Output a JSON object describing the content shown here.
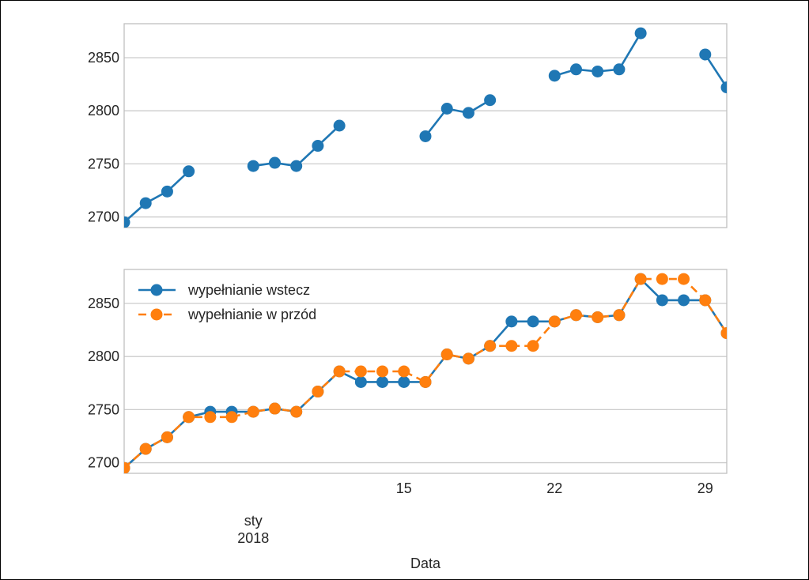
{
  "chart_data": [
    {
      "type": "line",
      "x": [
        "2018-01-02",
        "2018-01-03",
        "2018-01-04",
        "2018-01-05",
        "2018-01-06",
        "2018-01-07",
        "2018-01-08",
        "2018-01-09",
        "2018-01-10",
        "2018-01-11",
        "2018-01-12",
        "2018-01-13",
        "2018-01-14",
        "2018-01-15",
        "2018-01-16",
        "2018-01-17",
        "2018-01-18",
        "2018-01-19",
        "2018-01-20",
        "2018-01-21",
        "2018-01-22",
        "2018-01-23",
        "2018-01-24",
        "2018-01-25",
        "2018-01-26",
        "2018-01-27",
        "2018-01-28",
        "2018-01-29",
        "2018-01-30"
      ],
      "series": [
        {
          "color": "#1f77b4",
          "values": [
            2695,
            2713,
            2724,
            2743,
            null,
            null,
            2748,
            2751,
            2748,
            2767,
            2786,
            null,
            null,
            null,
            2776,
            2802,
            2798,
            2810,
            null,
            null,
            2833,
            2839,
            2837,
            2839,
            2873,
            null,
            null,
            2853,
            2822
          ]
        }
      ],
      "yticks": [
        2700,
        2750,
        2800,
        2850
      ],
      "ylim": [
        2690,
        2882
      ],
      "grid": true
    },
    {
      "type": "line",
      "x": [
        "2018-01-02",
        "2018-01-03",
        "2018-01-04",
        "2018-01-05",
        "2018-01-06",
        "2018-01-07",
        "2018-01-08",
        "2018-01-09",
        "2018-01-10",
        "2018-01-11",
        "2018-01-12",
        "2018-01-13",
        "2018-01-14",
        "2018-01-15",
        "2018-01-16",
        "2018-01-17",
        "2018-01-18",
        "2018-01-19",
        "2018-01-20",
        "2018-01-21",
        "2018-01-22",
        "2018-01-23",
        "2018-01-24",
        "2018-01-25",
        "2018-01-26",
        "2018-01-27",
        "2018-01-28",
        "2018-01-29",
        "2018-01-30"
      ],
      "series": [
        {
          "name": "wypełnianie wstecz",
          "color": "#1f77b4",
          "style": "solid",
          "values": [
            2695,
            2713,
            2724,
            2743,
            2748,
            2748,
            2748,
            2751,
            2748,
            2767,
            2786,
            2776,
            2776,
            2776,
            2776,
            2802,
            2798,
            2810,
            2833,
            2833,
            2833,
            2839,
            2837,
            2839,
            2873,
            2853,
            2853,
            2853,
            2822
          ]
        },
        {
          "name": "wypełnianie w przód",
          "color": "#ff7f0e",
          "style": "dashed",
          "values": [
            2695,
            2713,
            2724,
            2743,
            2743,
            2743,
            2748,
            2751,
            2748,
            2767,
            2786,
            2786,
            2786,
            2786,
            2776,
            2802,
            2798,
            2810,
            2810,
            2810,
            2833,
            2839,
            2837,
            2839,
            2873,
            2873,
            2873,
            2853,
            2822
          ]
        }
      ],
      "yticks": [
        2700,
        2750,
        2800,
        2850
      ],
      "ylim": [
        2690,
        2882
      ],
      "legend": "top-left",
      "grid": true,
      "xticks": [
        {
          "date": "2018-01-15",
          "label": "15"
        },
        {
          "date": "2018-01-22",
          "label": "22"
        },
        {
          "date": "2018-01-29",
          "label": "29"
        }
      ],
      "month_label": {
        "date": "2018-01-08",
        "line1": "sty",
        "line2": "2018"
      },
      "xlabel": "Data"
    }
  ]
}
